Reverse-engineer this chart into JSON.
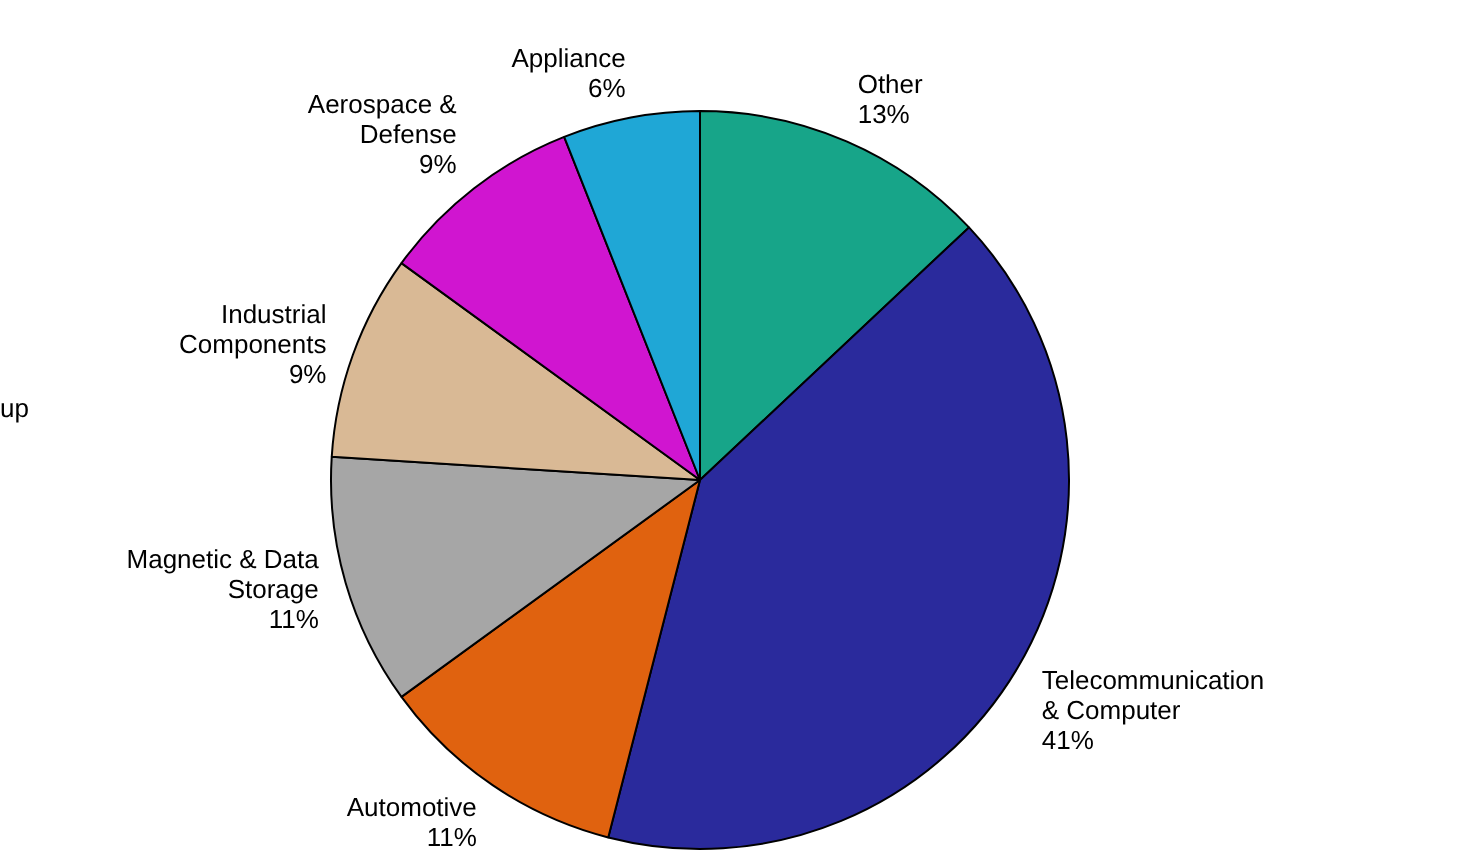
{
  "chart_data": {
    "type": "pie",
    "categories": [
      "Other",
      "Telecommunication & Computer",
      "Automotive",
      "Magnetic & Data Storage",
      "Industrial Components",
      "Aerospace & Defense",
      "Appliance"
    ],
    "values": [
      13,
      41,
      11,
      11,
      9,
      9,
      6
    ],
    "colors": [
      "#17a589",
      "#2a2a9c",
      "#e0620f",
      "#a6a6a6",
      "#d9b995",
      "#d015d0",
      "#1fa7d6"
    ],
    "value_labels": [
      "13%",
      "41%",
      "11%",
      "11%",
      "9%",
      "9%",
      "6%"
    ],
    "annotations": [
      "up"
    ],
    "legend": false
  }
}
